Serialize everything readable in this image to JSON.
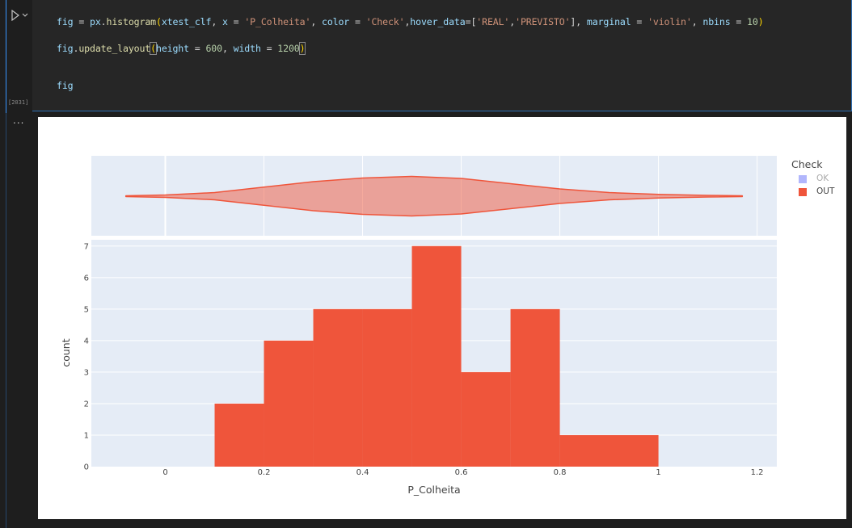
{
  "cell": {
    "execution_count": "[2031]",
    "lines": [
      [
        {
          "t": "fig",
          "c": "id"
        },
        {
          "t": " = ",
          "c": "op"
        },
        {
          "t": "px",
          "c": "id"
        },
        {
          "t": ".",
          "c": "op"
        },
        {
          "t": "histogram",
          "c": "fn"
        },
        {
          "t": "(",
          "c": "br"
        },
        {
          "t": "xtest_clf",
          "c": "id"
        },
        {
          "t": ", ",
          "c": "op"
        },
        {
          "t": "x",
          "c": "id"
        },
        {
          "t": " = ",
          "c": "op"
        },
        {
          "t": "'P_Colheita'",
          "c": "str"
        },
        {
          "t": ", ",
          "c": "op"
        },
        {
          "t": "color",
          "c": "id"
        },
        {
          "t": " = ",
          "c": "op"
        },
        {
          "t": "'Check'",
          "c": "str"
        },
        {
          "t": ",",
          "c": "op"
        },
        {
          "t": "hover_data",
          "c": "id"
        },
        {
          "t": "=[",
          "c": "op"
        },
        {
          "t": "'REAL'",
          "c": "str"
        },
        {
          "t": ",",
          "c": "op"
        },
        {
          "t": "'PREVISTO'",
          "c": "str"
        },
        {
          "t": "], ",
          "c": "op"
        },
        {
          "t": "marginal",
          "c": "id"
        },
        {
          "t": " = ",
          "c": "op"
        },
        {
          "t": "'violin'",
          "c": "str"
        },
        {
          "t": ", ",
          "c": "op"
        },
        {
          "t": "nbins",
          "c": "id"
        },
        {
          "t": " = ",
          "c": "op"
        },
        {
          "t": "10",
          "c": "num"
        },
        {
          "t": ")",
          "c": "br"
        }
      ],
      [
        {
          "t": "fig",
          "c": "id"
        },
        {
          "t": ".",
          "c": "op"
        },
        {
          "t": "update_layout",
          "c": "fn"
        },
        {
          "t": "(",
          "c": "brh"
        },
        {
          "t": "height",
          "c": "id"
        },
        {
          "t": " = ",
          "c": "op"
        },
        {
          "t": "600",
          "c": "num"
        },
        {
          "t": ", ",
          "c": "op"
        },
        {
          "t": "width",
          "c": "id"
        },
        {
          "t": " = ",
          "c": "op"
        },
        {
          "t": "1200",
          "c": "num"
        },
        {
          "t": ")",
          "c": "brh"
        }
      ],
      [],
      [
        {
          "t": "fig",
          "c": "id"
        }
      ]
    ]
  },
  "output": {
    "menu_label": "..."
  },
  "colors": {
    "out": "#ef553b",
    "ok": "#636efa",
    "plot_bg": "#e5ecf6",
    "violin_fill": "rgba(239,85,59,0.5)"
  },
  "chart_data": {
    "type": "bar",
    "xlabel": "P_Colheita",
    "ylabel": "count",
    "xlim": [
      -0.15,
      1.24
    ],
    "ylim": [
      0,
      7.2
    ],
    "x_ticks": [
      0,
      0.2,
      0.4,
      0.6,
      0.8,
      1,
      1.2
    ],
    "x_tick_labels": [
      "0",
      "0.2",
      "0.4",
      "0.6",
      "0.8",
      "1",
      "1.2"
    ],
    "y_ticks": [
      0,
      1,
      2,
      3,
      4,
      5,
      6,
      7
    ],
    "bins": [
      {
        "x0": 0.1,
        "x1": 0.2,
        "count": 2
      },
      {
        "x0": 0.2,
        "x1": 0.3,
        "count": 4
      },
      {
        "x0": 0.3,
        "x1": 0.4,
        "count": 5
      },
      {
        "x0": 0.4,
        "x1": 0.5,
        "count": 5
      },
      {
        "x0": 0.5,
        "x1": 0.6,
        "count": 7
      },
      {
        "x0": 0.6,
        "x1": 0.7,
        "count": 3
      },
      {
        "x0": 0.7,
        "x1": 0.8,
        "count": 5
      },
      {
        "x0": 0.8,
        "x1": 1.0,
        "count": 1
      }
    ],
    "marginal": {
      "type": "violin",
      "x_min": -0.08,
      "x_max": 1.17,
      "profile": [
        {
          "x": -0.08,
          "w": 0.02
        },
        {
          "x": 0.0,
          "w": 0.06
        },
        {
          "x": 0.1,
          "w": 0.18
        },
        {
          "x": 0.2,
          "w": 0.45
        },
        {
          "x": 0.3,
          "w": 0.72
        },
        {
          "x": 0.4,
          "w": 0.9
        },
        {
          "x": 0.5,
          "w": 0.98
        },
        {
          "x": 0.6,
          "w": 0.88
        },
        {
          "x": 0.7,
          "w": 0.62
        },
        {
          "x": 0.8,
          "w": 0.36
        },
        {
          "x": 0.9,
          "w": 0.18
        },
        {
          "x": 1.0,
          "w": 0.09
        },
        {
          "x": 1.1,
          "w": 0.04
        },
        {
          "x": 1.17,
          "w": 0.02
        }
      ]
    },
    "legend": {
      "title": "Check",
      "placement": "top-right",
      "items": [
        {
          "name": "OK",
          "color": "#636efa",
          "visible": false
        },
        {
          "name": "OUT",
          "color": "#ef553b",
          "visible": true
        }
      ]
    }
  }
}
